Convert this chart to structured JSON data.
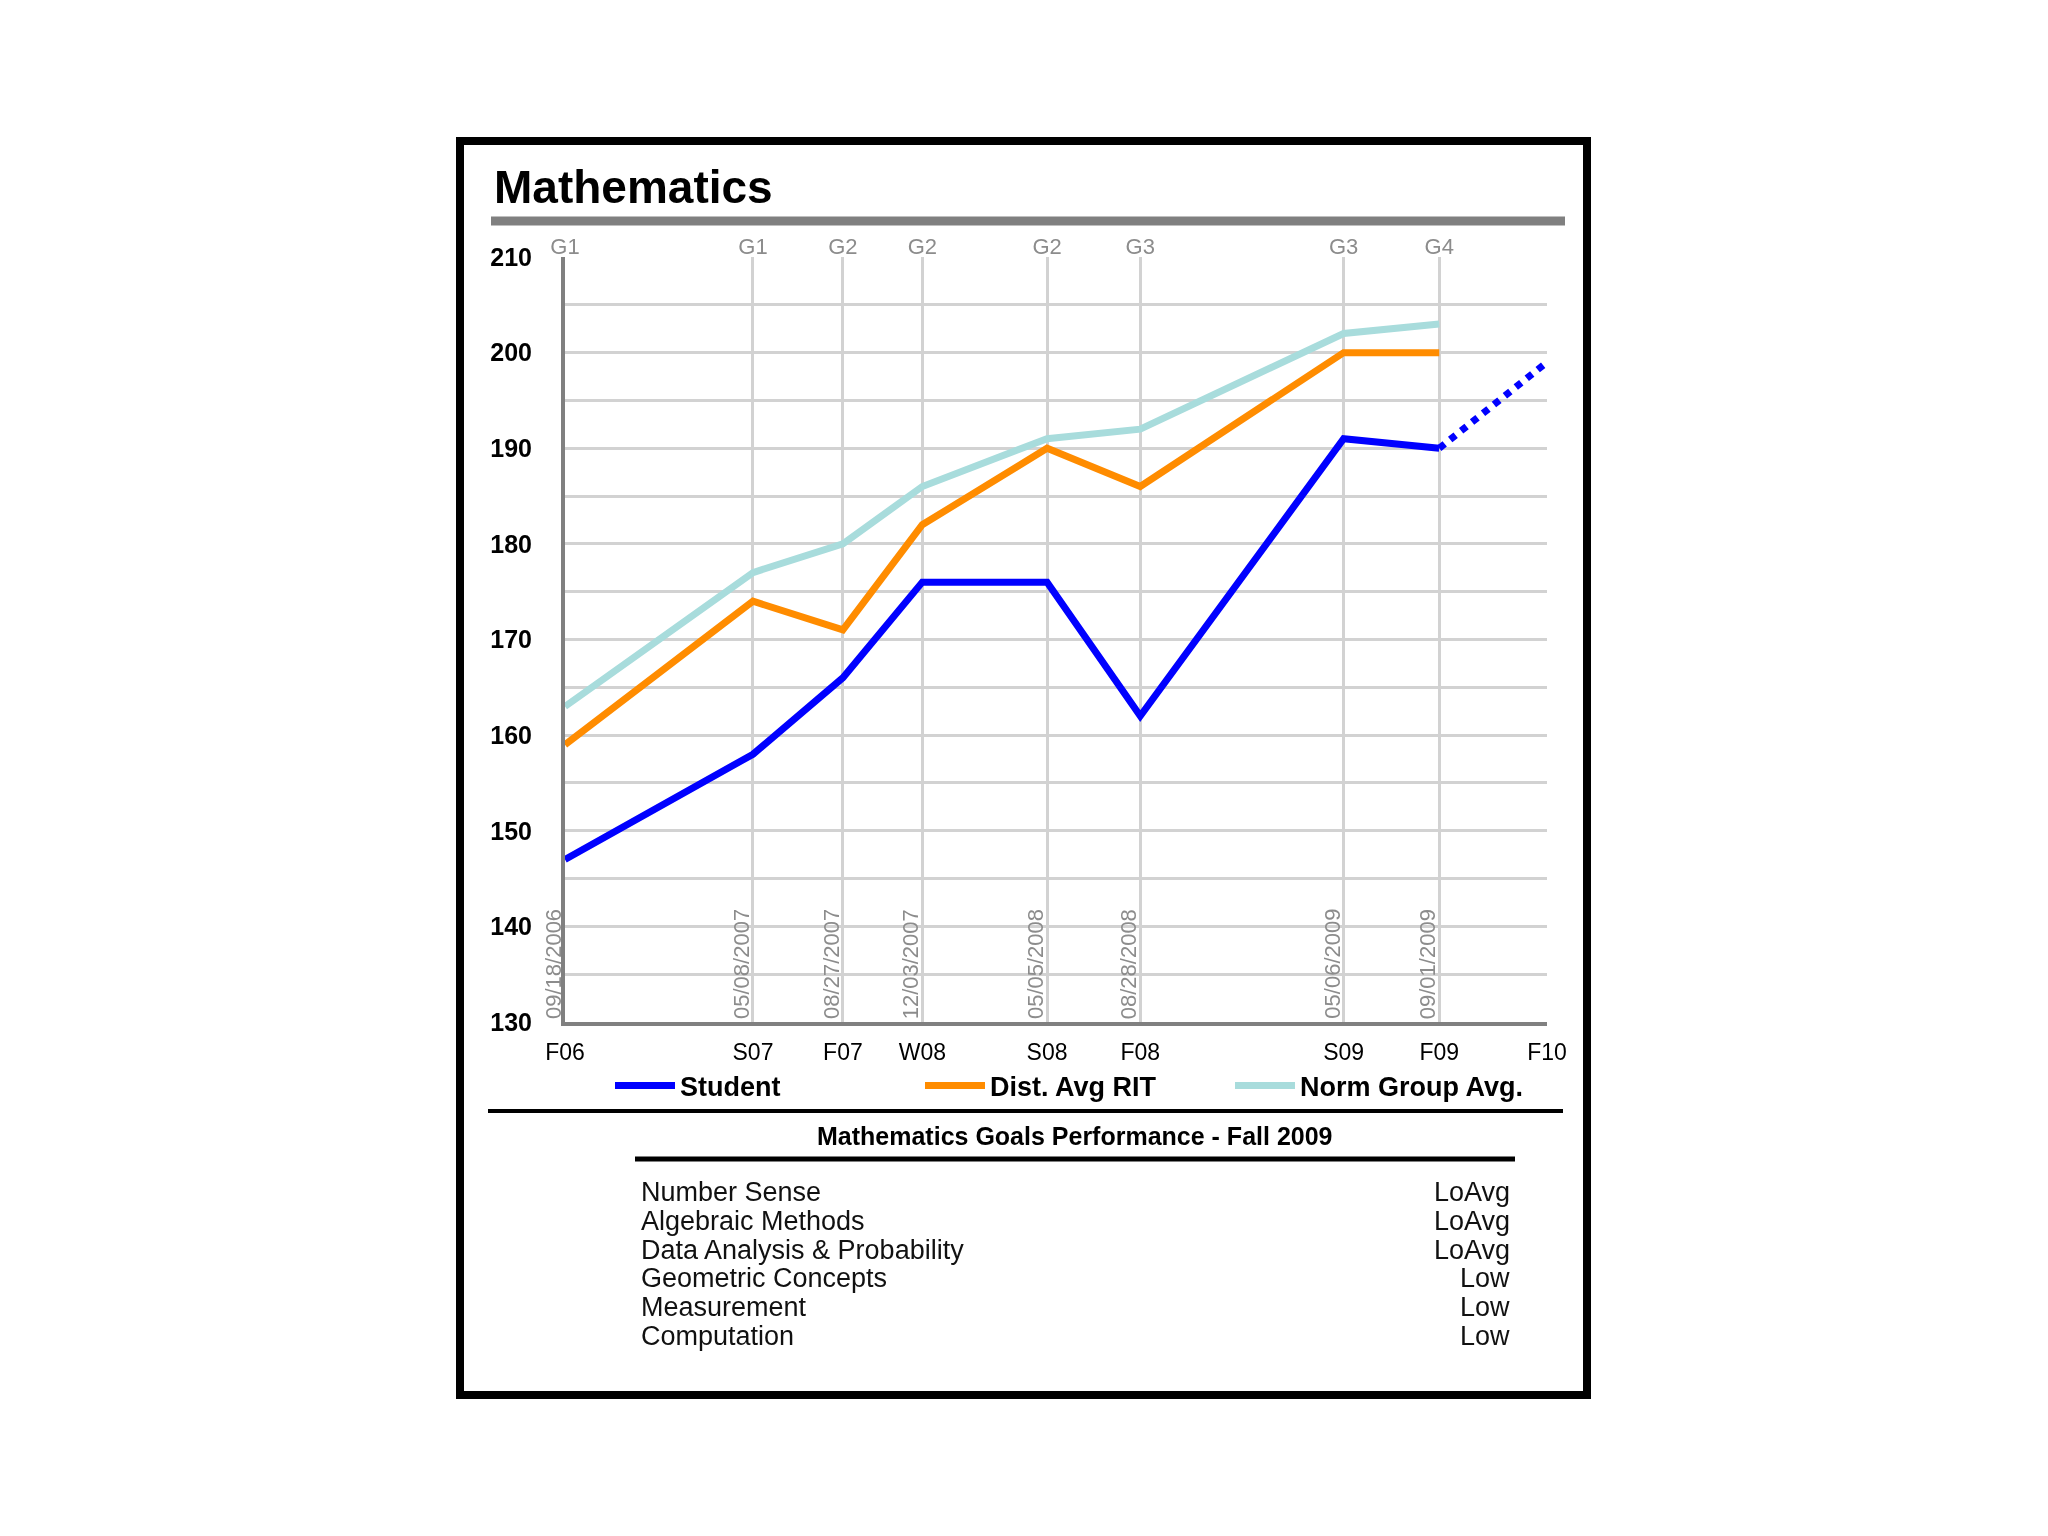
{
  "chart_data": [
    {
      "type": "line",
      "title": "Mathematics",
      "x": [
        "2006-09-18",
        "2007-05-08",
        "2007-08-27",
        "2007-12-03",
        "2008-05-05",
        "2008-08-28",
        "2009-05-06",
        "2009-09-01"
      ],
      "series": [
        {
          "name": "Student",
          "color": "#0000ff",
          "values": [
            147,
            158,
            166,
            176,
            176,
            162,
            191,
            190
          ]
        },
        {
          "name": "Dist. Avg RIT",
          "color": "#ff8c00",
          "values": [
            159,
            174,
            171,
            182,
            190,
            186,
            200,
            200
          ]
        },
        {
          "name": "Norm Group Avg.",
          "color": "#a8dcdc",
          "values": [
            163,
            177,
            180,
            186,
            191,
            192,
            202,
            203
          ]
        },
        {
          "color": "#0000ff",
          "line_style": "dotted",
          "x": [
            "2009-09-01",
            "2010-01-12"
          ],
          "values": [
            190,
            199
          ]
        }
      ],
      "xlim": [
        "2006-09-18",
        "2010-01-12"
      ],
      "xticks": [
        {
          "value": "2006-09-18",
          "label": "F06"
        },
        {
          "value": "2007-05-08",
          "label": "S07"
        },
        {
          "value": "2007-08-27",
          "label": "F07"
        },
        {
          "value": "2007-12-03",
          "label": "W08"
        },
        {
          "value": "2008-05-05",
          "label": "S08"
        },
        {
          "value": "2008-08-28",
          "label": "F08"
        },
        {
          "value": "2009-05-06",
          "label": "S09"
        },
        {
          "value": "2009-09-01",
          "label": "F09"
        },
        {
          "value": "2010-01-12",
          "label": "F10"
        }
      ],
      "x2lim": [
        "2006-09-18",
        "2010-01-12"
      ],
      "x2ticks": [
        {
          "value": "2006-09-18",
          "label": "G1"
        },
        {
          "value": "2007-05-08",
          "label": "G1"
        },
        {
          "value": "2007-08-27",
          "label": "G2"
        },
        {
          "value": "2007-12-03",
          "label": "G2"
        },
        {
          "value": "2008-05-05",
          "label": "G2"
        },
        {
          "value": "2008-08-28",
          "label": "G3"
        },
        {
          "value": "2009-05-06",
          "label": "G3"
        },
        {
          "value": "2009-09-01",
          "label": "G4"
        }
      ],
      "ylim": [
        130,
        210
      ],
      "yticks": [
        130,
        {
          "value": 135,
          "label": null
        },
        140,
        {
          "value": 145,
          "label": null
        },
        150,
        {
          "value": 155,
          "label": null
        },
        160,
        {
          "value": 165,
          "label": null
        },
        170,
        {
          "value": 175,
          "label": null
        },
        180,
        {
          "value": 185,
          "label": null
        },
        190,
        {
          "value": 195,
          "label": null
        },
        200,
        {
          "value": 205,
          "label": null
        },
        210
      ],
      "grid": true,
      "legend": "bottom",
      "line_style": "solid",
      "annotations": [
        "09/18/2006",
        "05/08/2007",
        "08/27/2007",
        "12/03/2007",
        "05/05/2008",
        "08/28/2008",
        "05/06/2009",
        "09/01/2009"
      ]
    },
    {
      "type": "other",
      "title": "Mathematics Goals Performance - Fall 2009",
      "annotations": [
        "Number Sense",
        "LoAvg",
        "Algebraic Methods",
        "LoAvg",
        "Data Analysis & Probability",
        "LoAvg",
        "Geometric Concepts",
        "Low",
        "Measurement",
        "Low",
        "Computation",
        "Low"
      ]
    }
  ]
}
